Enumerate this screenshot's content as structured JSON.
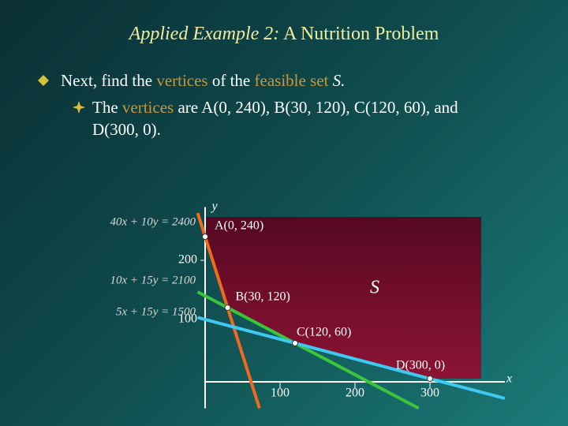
{
  "slide": {
    "title": [
      "Applied Example 2:",
      "A Nutrition Problem"
    ],
    "bullets": [
      [
        "Next, find the",
        "vertices",
        "of the",
        "feasible set",
        "S."
      ],
      [
        "The",
        "vertices",
        "are",
        "A(0, 240), B(30, 120), C(120, 60),",
        "and",
        "D(300, 0)."
      ]
    ]
  },
  "chart_data": {
    "type": "feasible-region",
    "xlabel": "x",
    "ylabel": "y",
    "xlim": [
      0,
      400
    ],
    "ylim": [
      -50,
      290
    ],
    "xticks": [
      100,
      200,
      300
    ],
    "yticks": [
      100,
      200
    ],
    "region_label": "S",
    "lines": [
      {
        "label": "40x + 10y = 2400",
        "a": 40,
        "b": 10,
        "c": 2400,
        "color": "#f0691f"
      },
      {
        "label": "10x + 15y = 2100",
        "a": 10,
        "b": 15,
        "c": 2100,
        "color": "#3cc43a"
      },
      {
        "label": "5x + 15y = 1500",
        "a": 5,
        "b": 15,
        "c": 1500,
        "color": "#3fc8f2"
      }
    ],
    "points": [
      {
        "label": "A(0, 240)",
        "x": 0,
        "y": 240
      },
      {
        "label": "B(30, 120)",
        "x": 30,
        "y": 120
      },
      {
        "label": "C(120, 60)",
        "x": 120,
        "y": 60
      },
      {
        "label": "D(300, 0)",
        "x": 300,
        "y": 0
      }
    ]
  }
}
